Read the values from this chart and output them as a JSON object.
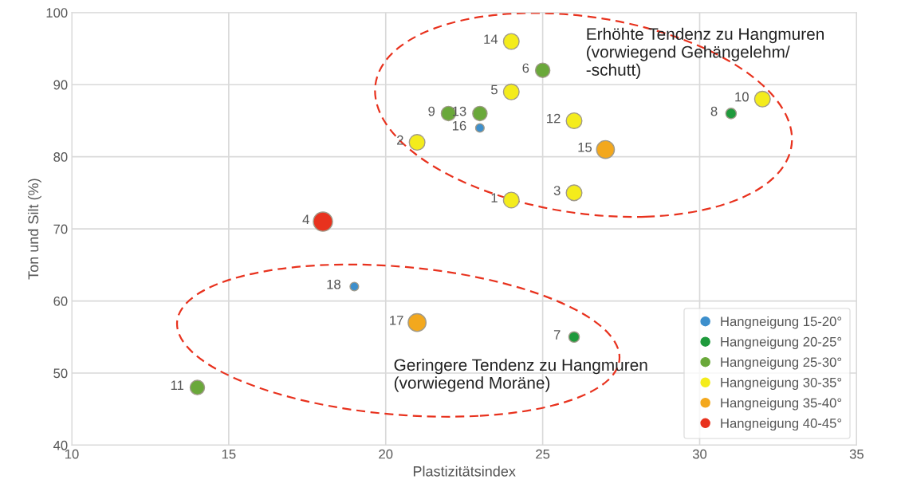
{
  "chart_data": {
    "type": "scatter",
    "xlabel": "Plastizitätsindex",
    "ylabel": "Ton und Silt (%)",
    "xlim": [
      10,
      35
    ],
    "xticks": [
      10,
      15,
      20,
      25,
      30,
      35
    ],
    "ylim": [
      40,
      100
    ],
    "yticks": [
      40,
      50,
      60,
      70,
      80,
      90,
      100
    ],
    "grid": true,
    "legend": "bottom right",
    "marker": "circle",
    "series": [
      {
        "name": "Hangneigung 15-20°",
        "color": "#3d8fcc",
        "x": [
          23,
          19
        ],
        "values": [
          84,
          62
        ]
      },
      {
        "name": "Hangneigung 20-25°",
        "color": "#1f9a3c",
        "x": [
          31,
          26
        ],
        "values": [
          86,
          55
        ]
      },
      {
        "name": "Hangneigung 25-30°",
        "color": "#6aa83a",
        "x": [
          25,
          22,
          23,
          14
        ],
        "values": [
          92,
          86,
          86,
          48
        ]
      },
      {
        "name": "Hangneigung 30-35°",
        "color": "#f4ec1c",
        "x": [
          24,
          24,
          32,
          26,
          21,
          24,
          26
        ],
        "values": [
          96,
          89,
          88,
          85,
          82,
          74,
          75
        ]
      },
      {
        "name": "Hangneigung 35-40°",
        "color": "#f3a81d",
        "x": [
          27,
          21
        ],
        "values": [
          81,
          57
        ]
      },
      {
        "name": "Hangneigung 40-45°",
        "color": "#e8321e",
        "x": [
          18
        ],
        "values": [
          71
        ]
      }
    ],
    "annotations": [
      "Erhöhte Tendenz zu Hangmuren\n(vorwiegend Gehängelehm/\n-schutt)",
      "Geringere Tendenz zu Hangmuren\n(vorwiegend Moräne)",
      {
        "text": "16",
        "x": 23,
        "y": 84
      },
      {
        "text": "18",
        "x": 19,
        "y": 62
      },
      {
        "text": "8",
        "x": 31,
        "y": 86
      },
      {
        "text": "7",
        "x": 26,
        "y": 55
      },
      {
        "text": "6",
        "x": 25,
        "y": 92
      },
      {
        "text": "9",
        "x": 22,
        "y": 86
      },
      {
        "text": "13",
        "x": 23,
        "y": 86
      },
      {
        "text": "11",
        "x": 14,
        "y": 48
      },
      {
        "text": "14",
        "x": 24,
        "y": 96
      },
      {
        "text": "5",
        "x": 24,
        "y": 89
      },
      {
        "text": "10",
        "x": 32,
        "y": 88
      },
      {
        "text": "12",
        "x": 26,
        "y": 85
      },
      {
        "text": "2",
        "x": 21,
        "y": 82
      },
      {
        "text": "1",
        "x": 24,
        "y": 74
      },
      {
        "text": "3",
        "x": 26,
        "y": 75
      },
      {
        "text": "15",
        "x": 27,
        "y": 81
      },
      {
        "text": "17",
        "x": 21,
        "y": 57
      },
      {
        "text": "4",
        "x": 18,
        "y": 71
      }
    ]
  }
}
